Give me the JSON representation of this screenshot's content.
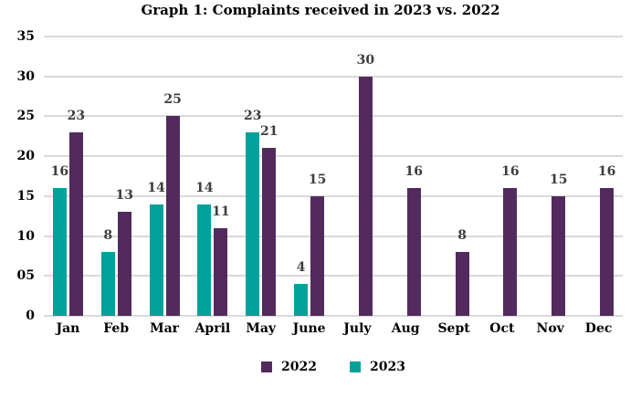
{
  "chart_data": {
    "type": "bar",
    "title": "Graph 1: Complaints received in 2023 vs. 2022",
    "categories": [
      "Jan",
      "Feb",
      "Mar",
      "April",
      "May",
      "June",
      "July",
      "Aug",
      "Sept",
      "Oct",
      "Nov",
      "Dec"
    ],
    "series": [
      {
        "name": "2022",
        "color": "#532A5E",
        "values": [
          23,
          13,
          25,
          11,
          21,
          15,
          30,
          16,
          8,
          16,
          15,
          16
        ]
      },
      {
        "name": "2023",
        "color": "#00A19A",
        "values": [
          16,
          8,
          14,
          14,
          23,
          4,
          null,
          null,
          null,
          null,
          null,
          null
        ]
      }
    ],
    "cluster_order": [
      "2023",
      "2022"
    ],
    "ylim": [
      0,
      35
    ],
    "ytick_labels": [
      "0",
      "05",
      "10",
      "15",
      "20",
      "25",
      "30",
      "35"
    ],
    "grid": true,
    "gridline_color": "#D9D9D9",
    "data_label_color": "#3D3D3D",
    "axis_text_color": "#000000",
    "legend_position": "bottom"
  }
}
